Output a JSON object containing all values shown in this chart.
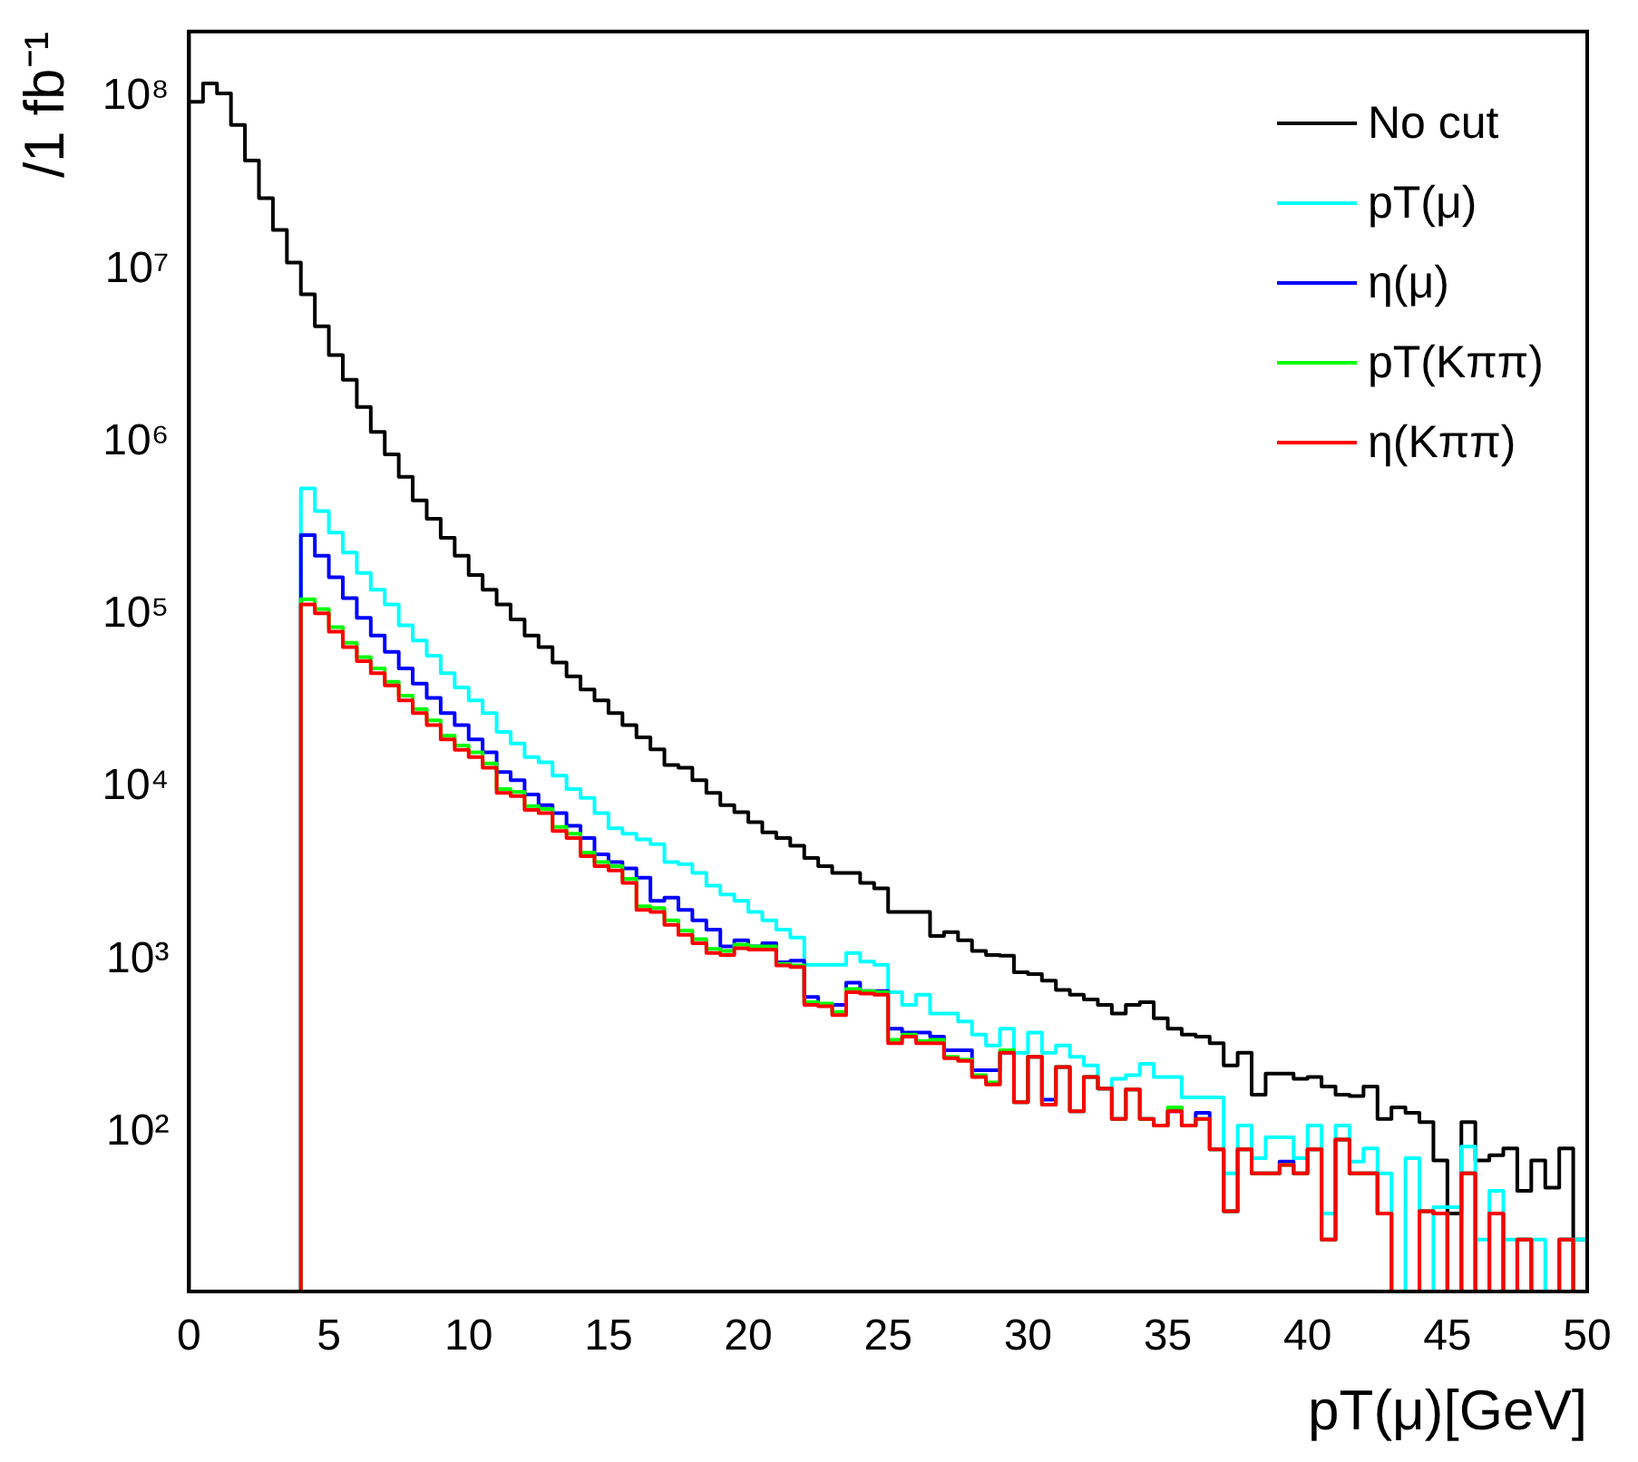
{
  "chart_data": {
    "type": "histogram",
    "xlabel": "pT(μ)[GeV]",
    "ylabel": "/1 fb⁻¹",
    "log": "y",
    "legend": "top right",
    "bins": [
      0,
      0.5,
      1,
      1.5,
      2,
      2.5,
      3,
      3.5,
      4,
      4.5,
      5,
      5.5,
      6,
      6.5,
      7,
      7.5,
      8,
      8.5,
      9,
      9.5,
      10,
      10.5,
      11,
      11.5,
      12,
      12.5,
      13,
      13.5,
      14,
      14.5,
      15,
      15.5,
      16,
      16.5,
      17,
      17.5,
      18,
      18.5,
      19,
      19.5,
      20,
      20.5,
      21,
      21.5,
      22,
      22.5,
      23,
      23.5,
      24,
      24.5,
      25,
      25.5,
      26,
      26.5,
      27,
      27.5,
      28,
      28.5,
      29,
      29.5,
      30,
      30.5,
      31,
      31.5,
      32,
      32.5,
      33,
      33.5,
      34,
      34.5,
      35,
      35.5,
      36,
      36.5,
      37,
      37.5,
      38,
      38.5,
      39,
      39.5,
      40,
      40.5,
      41,
      41.5,
      42,
      42.5,
      43,
      43.5,
      44,
      44.5,
      45,
      45.5,
      46,
      46.5,
      47,
      47.5,
      48,
      48.5,
      49,
      49.5,
      50
    ],
    "xlim": [
      0,
      50
    ],
    "xticks": [
      0,
      5,
      10,
      15,
      20,
      25,
      30,
      35,
      40,
      45,
      50
    ],
    "ylim": [
      12,
      240000000
    ],
    "yticks": [
      {
        "value": 100,
        "label": "10²"
      },
      {
        "value": 1000,
        "label": "10³"
      },
      {
        "value": 10000,
        "label": "10⁴"
      },
      {
        "value": 100000,
        "label": "10⁵"
      },
      {
        "value": 1000000,
        "label": "10⁶"
      },
      {
        "value": 10000000,
        "label": "10⁷"
      },
      {
        "value": 100000000,
        "label": "10⁸"
      }
    ],
    "series": [
      {
        "name": "No cut",
        "color": "#000000",
        "values": [
          94000000,
          120000000,
          105000000,
          69000000,
          43000000,
          26000000,
          17000000,
          11000000,
          7200000,
          4700000,
          3200000,
          2300000,
          1600000,
          1150000,
          850000,
          630000,
          460000,
          360000,
          280000,
          220000,
          170000,
          140000,
          115000,
          94000,
          76000,
          65000,
          53000,
          44000,
          37000,
          32000,
          27000,
          23000,
          19500,
          16600,
          13500,
          13000,
          11000,
          9300,
          7900,
          7200,
          6300,
          5500,
          5100,
          4600,
          3900,
          3500,
          3200,
          3200,
          2800,
          2600,
          1900,
          1900,
          1900,
          1380,
          1450,
          1300,
          1130,
          1070,
          1060,
          850,
          830,
          760,
          670,
          630,
          590,
          550,
          490,
          550,
          570,
          460,
          400,
          370,
          360,
          330,
          245,
          290,
          166,
          220,
          220,
          205,
          210,
          185,
          166,
          163,
          185,
          120,
          140,
          130,
          115,
          69,
          34,
          115,
          69,
          74,
          81,
          46,
          69,
          48,
          81,
          24
        ]
      },
      {
        "name": "pT(μ)",
        "color": "#00ffff",
        "values": [
          null,
          null,
          null,
          null,
          null,
          null,
          null,
          null,
          540000,
          400000,
          300000,
          230000,
          175000,
          140000,
          115000,
          87000,
          71000,
          58000,
          46000,
          38000,
          32000,
          27000,
          21000,
          18000,
          15000,
          14000,
          11700,
          9800,
          8700,
          7100,
          5800,
          5400,
          5000,
          4700,
          3700,
          3600,
          3200,
          2700,
          2400,
          2200,
          1900,
          1700,
          1500,
          1350,
          940,
          940,
          940,
          1100,
          980,
          940,
          650,
          550,
          630,
          490,
          490,
          440,
          370,
          320,
          400,
          290,
          380,
          290,
          320,
          275,
          245,
          180,
          205,
          215,
          250,
          210,
          210,
          160,
          160,
          160,
          58,
          110,
          71,
          94,
          94,
          71,
          110,
          34,
          110,
          68,
          81,
          58,
          null,
          71,
          null,
          37,
          37,
          83,
          24,
          46,
          24,
          24,
          24,
          null,
          24,
          24
        ]
      },
      {
        "name": "η(μ)",
        "color": "#0000ff",
        "values": [
          null,
          null,
          null,
          null,
          null,
          null,
          null,
          null,
          290000,
          220000,
          165000,
          125000,
          96000,
          76000,
          61000,
          49000,
          40000,
          33000,
          27000,
          23000,
          19000,
          16000,
          12300,
          11000,
          9100,
          7900,
          7100,
          6000,
          5100,
          4100,
          3700,
          3400,
          3000,
          2200,
          2300,
          1950,
          1700,
          1500,
          1200,
          1300,
          1200,
          1250,
          970,
          990,
          610,
          550,
          550,
          740,
          660,
          660,
          400,
          380,
          380,
          360,
          300,
          300,
          230,
          230,
          290,
          150,
          275,
          155,
          240,
          133,
          210,
          180,
          120,
          178,
          120,
          110,
          133,
          110,
          130,
          80,
          35,
          80,
          58,
          58,
          68,
          58,
          80,
          24,
          91,
          58,
          58,
          34,
          null,
          null,
          35,
          34,
          null,
          58,
          null,
          34,
          null,
          24,
          null,
          null,
          24,
          null
        ]
      },
      {
        "name": "pT(Kππ)",
        "color": "#00ff00",
        "values": [
          null,
          null,
          null,
          null,
          null,
          null,
          null,
          null,
          123000,
          108000,
          85000,
          69000,
          57000,
          49000,
          41000,
          34000,
          28500,
          24500,
          20000,
          17500,
          16000,
          13800,
          9800,
          9400,
          7800,
          7500,
          5900,
          5400,
          4200,
          3700,
          3500,
          2950,
          2050,
          2000,
          1700,
          1480,
          1320,
          1160,
          1130,
          1230,
          1200,
          1200,
          950,
          930,
          570,
          560,
          500,
          680,
          660,
          650,
          345,
          370,
          340,
          345,
          275,
          265,
          215,
          195,
          300,
          150,
          275,
          145,
          240,
          133,
          210,
          180,
          120,
          178,
          120,
          110,
          140,
          110,
          120,
          80,
          35,
          80,
          58,
          58,
          65,
          58,
          80,
          24,
          91,
          58,
          58,
          34,
          null,
          null,
          35,
          34,
          null,
          58,
          null,
          34,
          null,
          24,
          null,
          null,
          24,
          null
        ]
      },
      {
        "name": "η(Kππ)",
        "color": "#ff0000",
        "values": [
          null,
          null,
          null,
          null,
          null,
          null,
          null,
          null,
          115000,
          102000,
          80000,
          65000,
          54000,
          46000,
          39000,
          32000,
          27000,
          23000,
          19000,
          16500,
          15000,
          13000,
          9300,
          8900,
          7400,
          7100,
          5600,
          5100,
          4000,
          3500,
          3300,
          2800,
          1950,
          1900,
          1600,
          1400,
          1250,
          1100,
          1070,
          1170,
          1150,
          1150,
          930,
          910,
          550,
          540,
          480,
          650,
          640,
          630,
          330,
          360,
          330,
          330,
          270,
          260,
          210,
          190,
          290,
          150,
          275,
          145,
          240,
          133,
          210,
          180,
          120,
          178,
          120,
          110,
          133,
          110,
          120,
          80,
          35,
          80,
          58,
          58,
          65,
          58,
          80,
          24,
          91,
          58,
          58,
          34,
          null,
          null,
          35,
          34,
          null,
          58,
          null,
          34,
          null,
          24,
          null,
          null,
          24,
          null
        ]
      }
    ]
  }
}
